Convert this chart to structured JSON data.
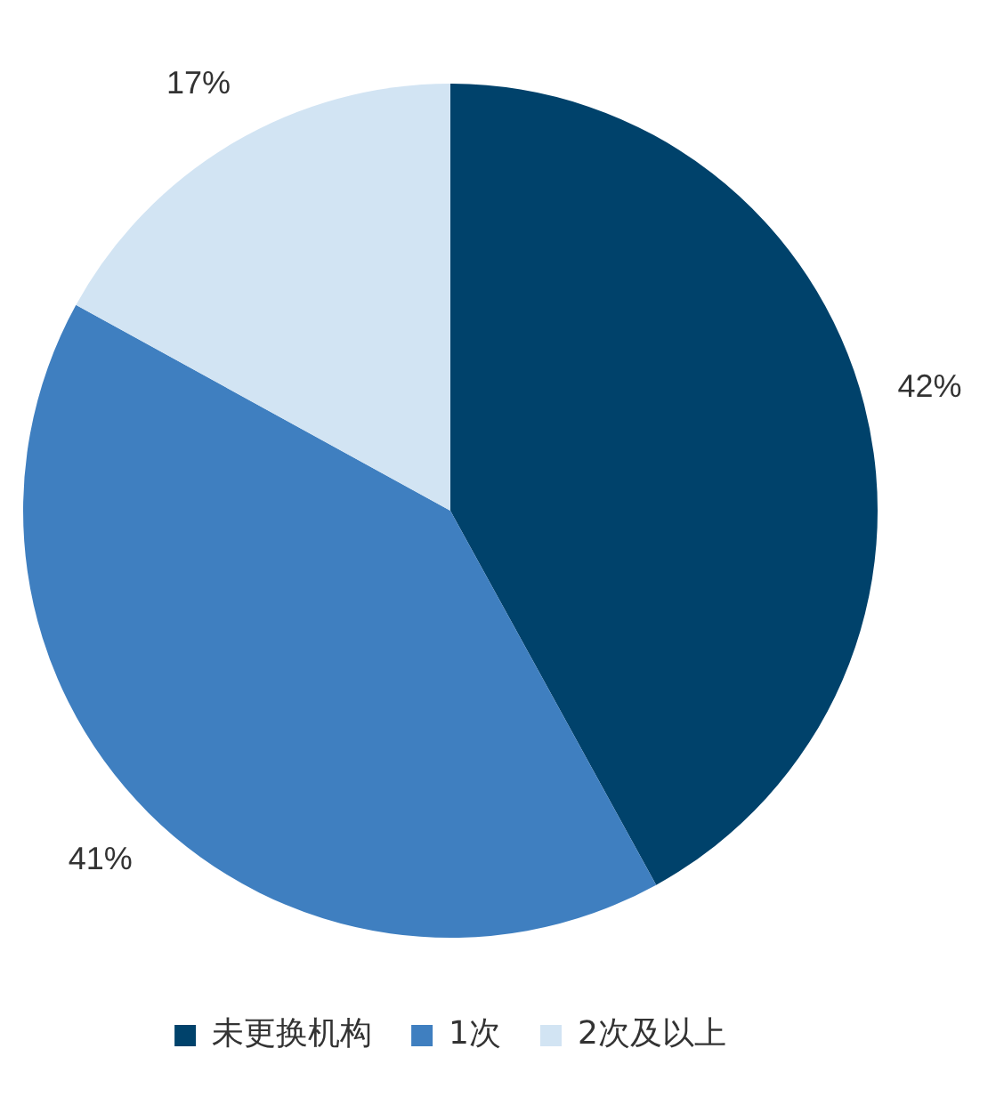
{
  "chart_data": {
    "type": "pie",
    "categories": [
      "未更换机构",
      "1次",
      "2次及以上"
    ],
    "values": [
      42,
      41,
      17
    ],
    "colors": [
      "#00426b",
      "#3f7fc0",
      "#d2e4f3"
    ],
    "value_labels": [
      "42%",
      "41%",
      "17%"
    ],
    "legend": "bottom"
  }
}
